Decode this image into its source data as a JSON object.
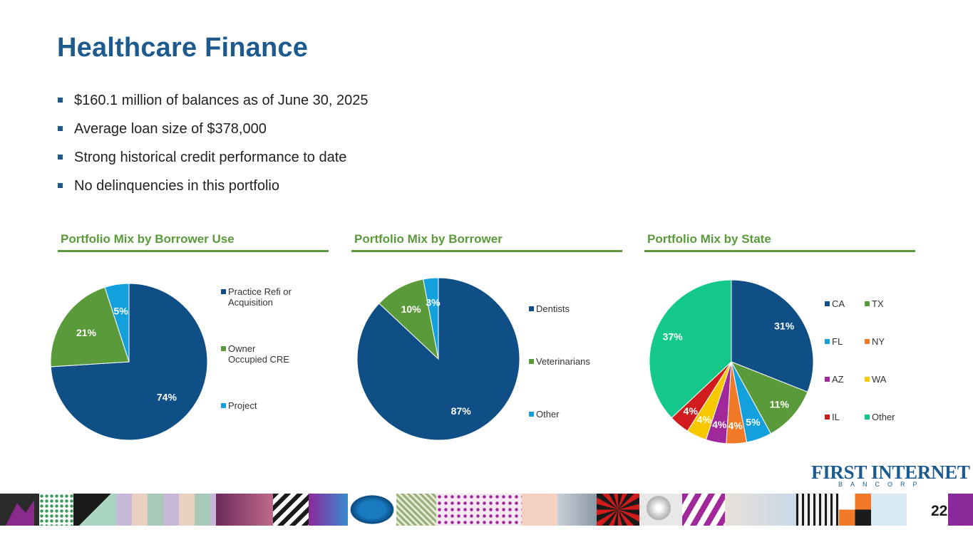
{
  "slide": {
    "title": "Healthcare Finance",
    "bullets": [
      "$160.1 million of balances as of June 30, 2025",
      "Average loan size of $378,000",
      "Strong historical credit performance to date",
      "No delinquencies in this portfolio"
    ],
    "page_number": "22"
  },
  "logo": {
    "name": "FIRST INTERNET",
    "sub": "BANCORP"
  },
  "panels": [
    {
      "title": "Portfolio Mix by Borrower Use"
    },
    {
      "title": "Portfolio Mix by Borrower"
    },
    {
      "title": "Portfolio Mix by State"
    }
  ],
  "colors": {
    "title": "#1d5a8e",
    "accent_green": "#5a9a3a",
    "navy": "#0f4f86",
    "green": "#5a9a3a",
    "light_blue": "#14a0dc",
    "orange": "#f07a28",
    "purple": "#a0289a",
    "yellow": "#f8c800",
    "red": "#d01c1c",
    "teal": "#14c88a"
  },
  "chart_data": [
    {
      "type": "pie",
      "title": "Portfolio Mix by Borrower Use",
      "categories": [
        "Practice Refi or Acquisition",
        "Owner Occupied CRE",
        "Project"
      ],
      "legend_lines": [
        [
          "Practice Refi or",
          "Acquisition"
        ],
        [
          "Owner",
          "Occupied CRE"
        ],
        [
          "Project"
        ]
      ],
      "values": [
        74,
        21,
        5
      ],
      "labels": [
        "74%",
        "21%",
        "5%"
      ],
      "colors": [
        "#0f4f86",
        "#5a9a3a",
        "#14a0dc"
      ],
      "legend": "right"
    },
    {
      "type": "pie",
      "title": "Portfolio Mix by Borrower",
      "categories": [
        "Dentists",
        "Veterinarians",
        "Other"
      ],
      "legend_lines": [
        [
          "Dentists"
        ],
        [
          "Veterinarians"
        ],
        [
          "Other"
        ]
      ],
      "values": [
        87,
        10,
        3
      ],
      "labels": [
        "87%",
        "10%",
        "3%"
      ],
      "colors": [
        "#0f4f86",
        "#5a9a3a",
        "#14a0dc"
      ],
      "legend": "right"
    },
    {
      "type": "pie",
      "title": "Portfolio Mix by State",
      "categories": [
        "CA",
        "TX",
        "FL",
        "NY",
        "AZ",
        "WA",
        "IL",
        "Other"
      ],
      "values": [
        31,
        11,
        5,
        4,
        4,
        4,
        4,
        37
      ],
      "labels": [
        "31%",
        "11%",
        "5%",
        "4%",
        "4%",
        "4%",
        "4%",
        "37%"
      ],
      "colors": [
        "#0f4f86",
        "#5a9a3a",
        "#14a0dc",
        "#f07a28",
        "#a0289a",
        "#f8c800",
        "#d01c1c",
        "#14c88a"
      ],
      "legend": "right, two columns"
    }
  ]
}
